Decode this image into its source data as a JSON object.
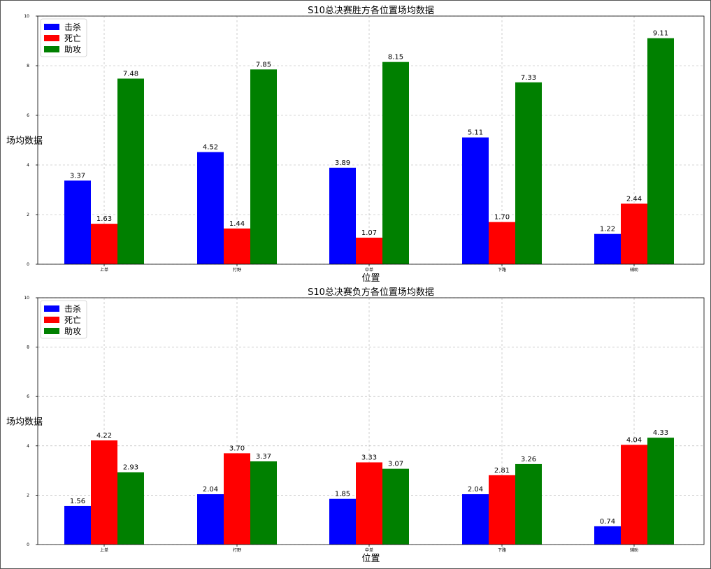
{
  "chart_data": [
    {
      "type": "bar",
      "title": "S10总决赛胜方各位置场均数据",
      "xlabel": "位置",
      "ylabel": "场均数据",
      "ylim": [
        0,
        10
      ],
      "yticks": [
        0,
        2,
        4,
        6,
        8,
        10
      ],
      "categories": [
        "上单",
        "打野",
        "中单",
        "下路",
        "辅助"
      ],
      "legend_position": "top-left",
      "grid": true,
      "series": [
        {
          "name": "击杀",
          "color": "#0000ff",
          "values": [
            3.37,
            4.52,
            3.89,
            5.11,
            1.22
          ],
          "labels": [
            "3.37",
            "4.52",
            "3.89",
            "5.11",
            "1.22"
          ]
        },
        {
          "name": "死亡",
          "color": "#ff0000",
          "values": [
            1.63,
            1.44,
            1.07,
            1.7,
            2.44
          ],
          "labels": [
            "1.63",
            "1.44",
            "1.07",
            "1.70",
            "2.44"
          ]
        },
        {
          "name": "助攻",
          "color": "#008000",
          "values": [
            7.48,
            7.85,
            8.15,
            7.33,
            9.11
          ],
          "labels": [
            "7.48",
            "7.85",
            "8.15",
            "7.33",
            "9.11"
          ]
        }
      ]
    },
    {
      "type": "bar",
      "title": "S10总决赛负方各位置场均数据",
      "xlabel": "位置",
      "ylabel": "场均数据",
      "ylim": [
        0,
        10
      ],
      "yticks": [
        0,
        2,
        4,
        6,
        8,
        10
      ],
      "categories": [
        "上单",
        "打野",
        "中单",
        "下路",
        "辅助"
      ],
      "legend_position": "top-left",
      "grid": true,
      "series": [
        {
          "name": "击杀",
          "color": "#0000ff",
          "values": [
            1.56,
            2.04,
            1.85,
            2.04,
            0.74
          ],
          "labels": [
            "1.56",
            "2.04",
            "1.85",
            "2.04",
            "0.74"
          ]
        },
        {
          "name": "死亡",
          "color": "#ff0000",
          "values": [
            4.22,
            3.7,
            3.33,
            2.81,
            4.04
          ],
          "labels": [
            "4.22",
            "3.70",
            "3.33",
            "2.81",
            "4.04"
          ]
        },
        {
          "name": "助攻",
          "color": "#008000",
          "values": [
            2.93,
            3.37,
            3.07,
            3.26,
            4.33
          ],
          "labels": [
            "2.93",
            "3.37",
            "3.07",
            "3.26",
            "4.33"
          ]
        }
      ]
    }
  ]
}
